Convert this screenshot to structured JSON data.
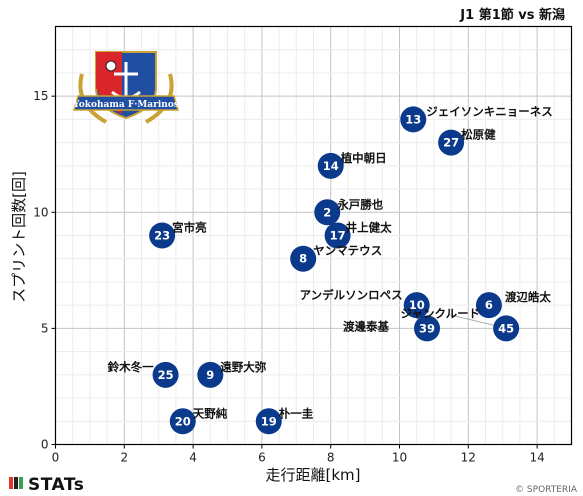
{
  "header": {
    "title": "J1 第1節 vs 新潟"
  },
  "footer": {
    "brand": "STATs",
    "copyright": "© SPORTERIA"
  },
  "logo": {
    "text": "Yokohama F·Marinos"
  },
  "colors": {
    "marker": "#0b3a8c",
    "marker_text": "#ffffff",
    "grid": "#cccccc",
    "axis": "#000000"
  },
  "chart_data": {
    "type": "scatter",
    "title": "J1 第1節 vs 新潟",
    "xlabel": "走行距離[km]",
    "ylabel": "スプリント回数[回]",
    "xlim": [
      0,
      15
    ],
    "ylim": [
      0,
      18
    ],
    "xticks": [
      0,
      2,
      4,
      6,
      8,
      10,
      12,
      14
    ],
    "yticks": [
      0,
      5,
      10,
      15
    ],
    "grid": true,
    "points": [
      {
        "number": "13",
        "name": "ジェイソンキニョーネス",
        "x": 10.4,
        "y": 14
      },
      {
        "number": "27",
        "name": "松原健",
        "x": 11.5,
        "y": 13
      },
      {
        "number": "14",
        "name": "植中朝日",
        "x": 8.0,
        "y": 12
      },
      {
        "number": "2",
        "name": "永戸勝也",
        "x": 7.9,
        "y": 10
      },
      {
        "number": "17",
        "name": "井上健太",
        "x": 8.2,
        "y": 9
      },
      {
        "number": "23",
        "name": "宮市亮",
        "x": 3.1,
        "y": 9
      },
      {
        "number": "8",
        "name": "ヤンマテウス",
        "x": 7.2,
        "y": 8
      },
      {
        "number": "10",
        "name": "アンデルソンロペス",
        "x": 10.5,
        "y": 6
      },
      {
        "number": "6",
        "name": "渡辺皓太",
        "x": 12.6,
        "y": 6
      },
      {
        "number": "39",
        "name": "渡邊泰基",
        "x": 10.8,
        "y": 5
      },
      {
        "number": "45",
        "name": "ジャンクルード",
        "x": 13.1,
        "y": 5
      },
      {
        "number": "25",
        "name": "鈴木冬一",
        "x": 3.2,
        "y": 3
      },
      {
        "number": "9",
        "name": "遠野大弥",
        "x": 4.5,
        "y": 3
      },
      {
        "number": "20",
        "name": "天野純",
        "x": 3.7,
        "y": 1
      },
      {
        "number": "19",
        "name": "朴一圭",
        "x": 6.2,
        "y": 1
      }
    ]
  }
}
